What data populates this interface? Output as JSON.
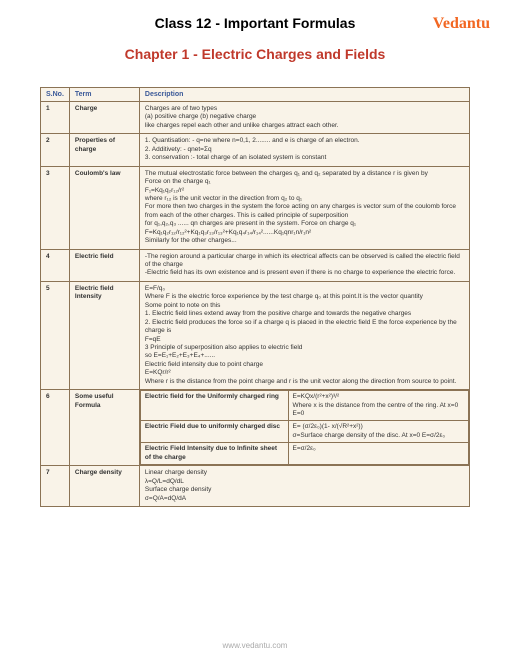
{
  "logo_text": "Vedantu",
  "page_title": "Class 12 - Important Formulas",
  "chapter_title": "Chapter 1 - Electric Charges and Fields",
  "headers": {
    "sno": "S.No.",
    "term": "Term",
    "desc": "Description"
  },
  "rows": [
    {
      "n": "1",
      "term": "Charge",
      "desc": "Charges are of two types\n(a) positive charge  (b) negative charge\nlike charges repel each other and unlike charges attract each other."
    },
    {
      "n": "2",
      "term": "Properties of charge",
      "desc": "1. Quantisation: - q=ne where n=0,1, 2........ and e is charge of an electron.\n2. Additivety: - qnet=Σq\n3. conservation :- total charge of an isolated system is constant"
    },
    {
      "n": "3",
      "term": "Coulomb's law",
      "desc": "The mutual electrostatic force between the charges q₁ and q₂ separated by a distance r is given by\nForce on the charge q₁\nF₁=Kq₁q₂r₁₂/r²\nwhere r₁₂ is the unit vector in the direction from q₂ to q₁\nFor more then two charges in the system the force acting on any charges is vector sum of the coulomb force from each of the other charges. This is called principle of superposition\nfor q₁,q₂,q₃ ...... qn charges are present in the system. Force on charge q₁\nF=Kq₁q₂r₁₂/r₁₂²+Kq₁q₃r₁₃/r₁₃²+Kq₁q₄r₁₄/r₁₄²......Kq₁qnr₁n/r₁n²\nSimilarly for the other charges..."
    },
    {
      "n": "4",
      "term": "Electric field",
      "desc": "-The region around a particular charge in which its electrical affects can be observed is called the electric field of the charge\n-Electric field has its own existence and is present even if there is no charge to experience the electric force."
    },
    {
      "n": "5",
      "term": "Electric field Intensity",
      "desc": "E=F/q₀\nWhere F is the electric force experience by the test charge q₀ at this point.It is the vector quantity\nSome point to note on this\n1. Electric field lines extend away from the positive charge and towards the negative charges\n2. Electric field produces the force so if a charge q is placed in the electric field E the force experience by the charge is\nF=qE\n3 Principle of superposition also applies to electric field\nso E=E₁+E₂+E₃+E₄+......\nElectric field intensity due to point charge\nE=KQr/r²\nWhere r is the distance from the point charge and r is the unit vector along the direction from source to point."
    },
    {
      "n": "6",
      "term": "Some useful Formula",
      "sub": [
        {
          "l": "Electric field for the Uniformly charged ring",
          "r": "E=KQx/(r²+x²)³/²\nWhere x is the distance from the centre of the ring. At x=0\nE=0"
        },
        {
          "l": "Electric Field due to uniformly charged disc",
          "r": "E= (σ/2ε₀)(1- x/(√R²+x²))\nσ=Surface charge density of the disc. At x=0 E=σ/2ε₀"
        },
        {
          "l": "Electric Field Intensity due to Infinite sheet of the charge",
          "r": "E=σ/2ε₀"
        }
      ]
    },
    {
      "n": "7",
      "term": "Charge density",
      "desc": "Linear charge density\nλ=Q/L=dQ/dL\nSurface charge density\nσ=Q/A=dQ/dA"
    }
  ],
  "footer": "www.vedantu.com"
}
